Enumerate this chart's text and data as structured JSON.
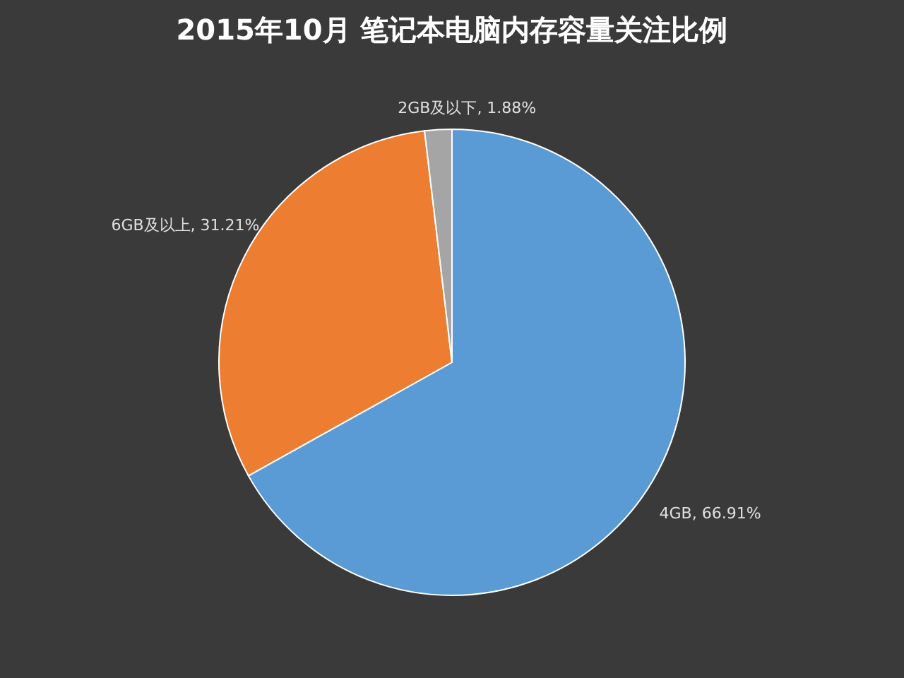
{
  "chart_data": {
    "type": "pie",
    "title": "2015年10月  笔记本电脑内存容量关注比例",
    "categories": [
      "4GB",
      "6GB及以上",
      "2GB及以下"
    ],
    "values": [
      66.91,
      31.21,
      1.88
    ],
    "colors": [
      "#5b9bd5",
      "#ed7d31",
      "#a5a5a5"
    ],
    "value_labels": [
      "66.91%",
      "31.21%",
      "1.88%"
    ]
  }
}
